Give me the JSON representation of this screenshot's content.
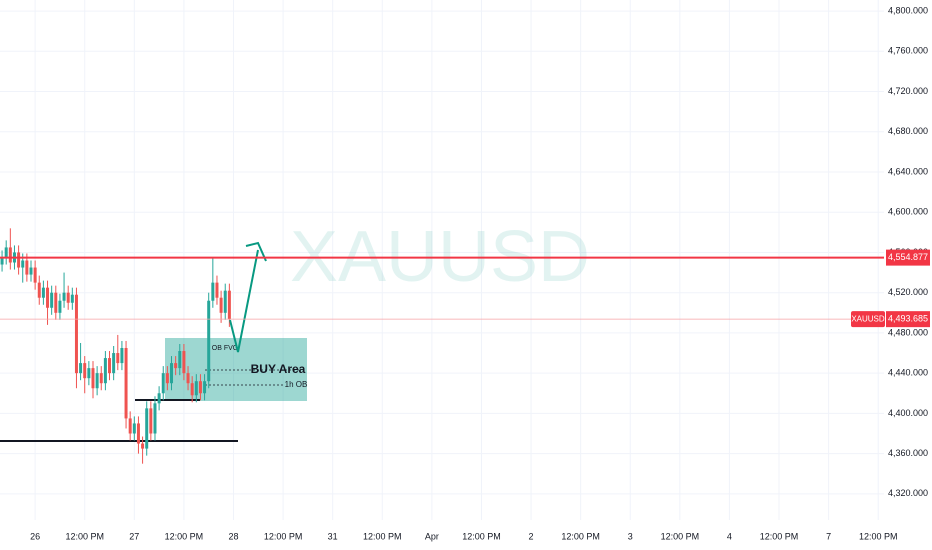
{
  "chart_data": {
    "type": "candlestick",
    "watermark": "XAUUSD",
    "x": [
      -8,
      -7,
      -6,
      -5,
      -4,
      -3,
      -2,
      -1,
      0,
      1,
      2,
      3,
      4,
      5,
      6,
      7,
      8,
      9,
      10,
      11,
      12,
      13,
      14,
      15,
      16,
      17,
      18,
      19,
      20,
      21,
      22,
      23,
      24,
      25,
      26,
      27,
      28,
      29,
      30,
      31,
      32,
      33,
      34,
      35,
      36,
      37,
      38,
      39,
      40,
      41,
      42,
      43,
      44,
      45,
      46,
      47
    ],
    "series": [
      {
        "name": "XAUUSD",
        "up_color": "#26a69a",
        "down_color": "#ef5350",
        "open": [
          4548,
          4555,
          4565,
          4550,
          4560,
          4545,
          4552,
          4538,
          4545,
          4530,
          4515,
          4525,
          4505,
          4520,
          4500,
          4512,
          4520,
          4510,
          4518,
          4440,
          4450,
          4435,
          4445,
          4425,
          4440,
          4430,
          4455,
          4440,
          4460,
          4450,
          4465,
          4395,
          4380,
          4390,
          4370,
          4365,
          4405,
          4380,
          4410,
          4420,
          4440,
          4430,
          4450,
          4445,
          4462,
          4440,
          4430,
          4418,
          4432,
          4420,
          4432,
          4512,
          4530,
          4515,
          4500,
          4522
        ],
        "high": [
          4562,
          4572,
          4584,
          4567,
          4567,
          4559,
          4559,
          4552,
          4552,
          4537,
          4532,
          4532,
          4527,
          4527,
          4519,
          4540,
          4527,
          4525,
          4525,
          4470,
          4457,
          4452,
          4452,
          4447,
          4447,
          4462,
          4462,
          4467,
          4478,
          4472,
          4472,
          4402,
          4397,
          4397,
          4377,
          4412,
          4412,
          4417,
          4427,
          4447,
          4447,
          4457,
          4457,
          4469,
          4469,
          4447,
          4437,
          4439,
          4439,
          4439,
          4520,
          4555,
          4537,
          4522,
          4529,
          4529
        ],
        "low": [
          4541,
          4548,
          4543,
          4543,
          4538,
          4530,
          4531,
          4531,
          4523,
          4508,
          4508,
          4488,
          4498,
          4493,
          4493,
          4505,
          4503,
          4503,
          4425,
          4433,
          4420,
          4428,
          4415,
          4418,
          4423,
          4423,
          4433,
          4433,
          4443,
          4443,
          4385,
          4373,
          4373,
          4360,
          4350,
          4358,
          4373,
          4373,
          4403,
          4413,
          4423,
          4423,
          4438,
          4438,
          4433,
          4423,
          4411,
          4411,
          4413,
          4413,
          4425,
          4505,
          4508,
          4490,
          4493,
          4486
        ],
        "close": [
          4555,
          4565,
          4550,
          4560,
          4545,
          4552,
          4538,
          4545,
          4530,
          4515,
          4525,
          4505,
          4520,
          4500,
          4512,
          4520,
          4510,
          4518,
          4440,
          4450,
          4435,
          4445,
          4425,
          4440,
          4430,
          4455,
          4440,
          4460,
          4450,
          4465,
          4395,
          4380,
          4390,
          4370,
          4365,
          4405,
          4380,
          4410,
          4420,
          4440,
          4430,
          4450,
          4445,
          4462,
          4440,
          4430,
          4418,
          4432,
          4420,
          4432,
          4512,
          4530,
          4515,
          4500,
          4522,
          4493.685
        ]
      }
    ],
    "last_price": {
      "value": 4493.685,
      "label": "4,493.685",
      "name": "XAUUSD"
    },
    "level": {
      "value": 4554.877,
      "label": "4,554.877",
      "color": "#f23645"
    },
    "annotations": {
      "zone": "BUY Area",
      "fvg": "OB FVG",
      "ob": "1h OB"
    },
    "ylim": [
      4294,
      4811
    ],
    "yticks": [
      {
        "value": 4320,
        "label": "4,320.000"
      },
      {
        "value": 4360,
        "label": "4,360.000"
      },
      {
        "value": 4400,
        "label": "4,400.000"
      },
      {
        "value": 4440,
        "label": "4,440.000"
      },
      {
        "value": 4480,
        "label": "4,480.000"
      },
      {
        "value": 4520,
        "label": "4,520.000"
      },
      {
        "value": 4560,
        "label": "4,560.000"
      },
      {
        "value": 4600,
        "label": "4,600.000"
      },
      {
        "value": 4640,
        "label": "4,640.000"
      },
      {
        "value": 4680,
        "label": "4,680.000"
      },
      {
        "value": 4720,
        "label": "4,720.000"
      },
      {
        "value": 4760,
        "label": "4,760.000"
      },
      {
        "value": 4800,
        "label": "4,800.000"
      }
    ],
    "xlim": [
      -8.5,
      205.4
    ],
    "xticks": [
      {
        "value": 0,
        "label": "26"
      },
      {
        "value": 12,
        "label": "12:00 PM"
      },
      {
        "value": 24,
        "label": "27"
      },
      {
        "value": 36,
        "label": "12:00 PM"
      },
      {
        "value": 48,
        "label": "28"
      },
      {
        "value": 60,
        "label": "12:00 PM"
      },
      {
        "value": 72,
        "label": "31"
      },
      {
        "value": 84,
        "label": "12:00 PM"
      },
      {
        "value": 96,
        "label": "Apr"
      },
      {
        "value": 108,
        "label": "12:00 PM"
      },
      {
        "value": 120,
        "label": "2"
      },
      {
        "value": 132,
        "label": "12:00 PM"
      },
      {
        "value": 144,
        "label": "3"
      },
      {
        "value": 156,
        "label": "12:00 PM"
      },
      {
        "value": 168,
        "label": "4"
      },
      {
        "value": 180,
        "label": "12:00 PM"
      },
      {
        "value": 192,
        "label": "7"
      },
      {
        "value": 204,
        "label": "12:00 PM"
      }
    ],
    "grid": true
  }
}
